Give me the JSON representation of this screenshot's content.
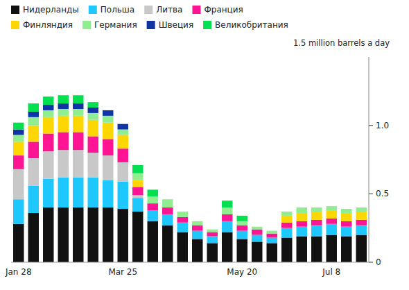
{
  "chart_data": {
    "type": "bar",
    "stacked": true,
    "annotation": "1.5 million barrels a day",
    "categories": [
      "Jan 28",
      null,
      null,
      null,
      null,
      null,
      null,
      "Mar 25",
      null,
      null,
      null,
      null,
      null,
      null,
      null,
      "May 20",
      null,
      null,
      null,
      null,
      null,
      "Jul 8",
      null,
      null
    ],
    "series": [
      {
        "name": "Нидерланды",
        "color": "#111111",
        "values": [
          0.28,
          0.36,
          0.4,
          0.4,
          0.4,
          0.4,
          0.4,
          0.39,
          0.37,
          0.3,
          0.27,
          0.22,
          0.17,
          0.14,
          0.22,
          0.17,
          0.15,
          0.14,
          0.18,
          0.19,
          0.19,
          0.2,
          0.19,
          0.2
        ]
      },
      {
        "name": "Польша",
        "color": "#1EC8FF",
        "values": [
          0.18,
          0.2,
          0.21,
          0.22,
          0.22,
          0.22,
          0.2,
          0.2,
          0.1,
          0.08,
          0.08,
          0.07,
          0.06,
          0.05,
          0.08,
          0.06,
          0.05,
          0.04,
          0.07,
          0.07,
          0.08,
          0.08,
          0.07,
          0.07
        ]
      },
      {
        "name": "Литва",
        "color": "#C8C8C8",
        "values": [
          0.22,
          0.2,
          0.2,
          0.2,
          0.2,
          0.18,
          0.18,
          0.14,
          0.02,
          0,
          0,
          0,
          0,
          0,
          0,
          0,
          0,
          0,
          0,
          0,
          0,
          0,
          0,
          0
        ]
      },
      {
        "name": "Франция",
        "color": "#FF1493",
        "values": [
          0.1,
          0.12,
          0.13,
          0.13,
          0.13,
          0.12,
          0.12,
          0.1,
          0.06,
          0.05,
          0.05,
          0.04,
          0.04,
          0.03,
          0.05,
          0.04,
          0.04,
          0.03,
          0.04,
          0.04,
          0.04,
          0.04,
          0.04,
          0.04
        ]
      },
      {
        "name": "Финляндия",
        "color": "#FFD700",
        "values": [
          0.1,
          0.12,
          0.12,
          0.12,
          0.12,
          0.12,
          0.12,
          0.1,
          0.05,
          0,
          0,
          0,
          0,
          0,
          0,
          0,
          0,
          0,
          0.05,
          0.06,
          0.06,
          0.06,
          0.06,
          0.06
        ]
      },
      {
        "name": "Германия",
        "color": "#90EE90",
        "values": [
          0.05,
          0.06,
          0.05,
          0.05,
          0.05,
          0.05,
          0.05,
          0.04,
          0.05,
          0.05,
          0.06,
          0.04,
          0.03,
          0.02,
          0.05,
          0.03,
          0.02,
          0.02,
          0.03,
          0.04,
          0.03,
          0.03,
          0.03,
          0.03
        ]
      },
      {
        "name": "Швеция",
        "color": "#1034A6",
        "values": [
          0.04,
          0.04,
          0.04,
          0.04,
          0.04,
          0.04,
          0.04,
          0.04,
          0,
          0,
          0,
          0,
          0,
          0,
          0,
          0,
          0,
          0,
          0,
          0,
          0,
          0,
          0,
          0
        ]
      },
      {
        "name": "Великобритания",
        "color": "#00E050",
        "values": [
          0.05,
          0.06,
          0.06,
          0.06,
          0.06,
          0.04,
          0,
          0,
          0.06,
          0.05,
          0,
          0,
          0,
          0,
          0.05,
          0.04,
          0,
          0,
          0,
          0,
          0,
          0,
          0,
          0
        ]
      }
    ],
    "ylim": [
      0,
      1.5
    ],
    "yticks": [
      0,
      0.5,
      {
        "value": 1.0,
        "label": "1.0"
      }
    ],
    "grid": false,
    "legend": "top"
  }
}
